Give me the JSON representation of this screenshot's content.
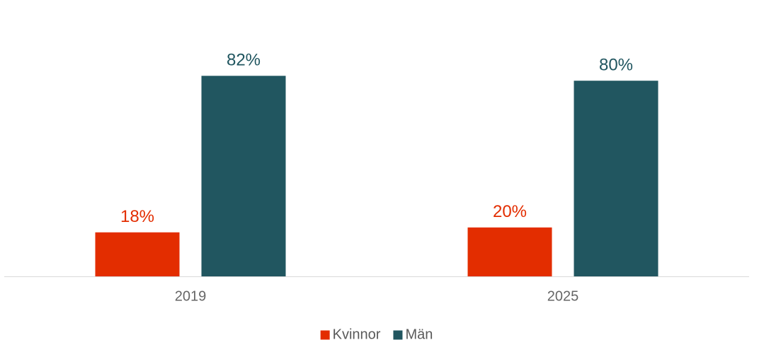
{
  "chart_data": {
    "type": "bar",
    "categories": [
      "2019",
      "2025"
    ],
    "series": [
      {
        "name": "Kvinnor",
        "color": "#e32d00",
        "values": [
          18,
          20
        ],
        "value_labels": [
          "18%",
          "20%"
        ]
      },
      {
        "name": "Män",
        "color": "#215660",
        "values": [
          82,
          80
        ],
        "value_labels": [
          "82%",
          "80%"
        ]
      }
    ],
    "ylim": [
      0,
      100
    ],
    "legend": "bottom"
  }
}
